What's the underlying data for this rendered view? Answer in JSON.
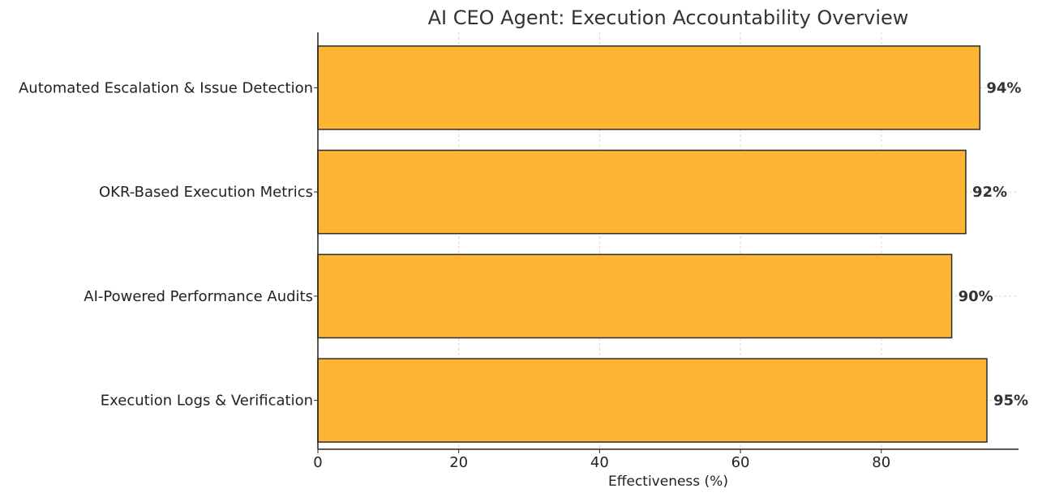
{
  "chart_data": {
    "type": "bar",
    "orientation": "horizontal",
    "title": "AI CEO Agent: Execution Accountability Overview",
    "xlabel": "Effectiveness (%)",
    "ylabel": "",
    "categories": [
      "Automated Escalation & Issue Detection",
      "OKR-Based Execution Metrics",
      "AI-Powered Performance Audits",
      "Execution Logs & Verification"
    ],
    "values": [
      94,
      92,
      90,
      95
    ],
    "value_labels": [
      "94%",
      "92%",
      "90%",
      "95%"
    ],
    "xlim": [
      0,
      100
    ],
    "xticks": [
      0,
      20,
      40,
      60,
      80
    ],
    "grid": true,
    "bar_color": "#FFB534",
    "bar_edge_color": "#2b2b2b",
    "grid_color": "#e5d5b5"
  }
}
